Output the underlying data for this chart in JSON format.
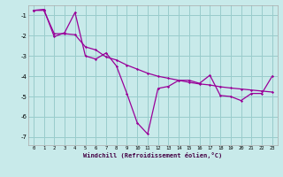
{
  "xlabel": "Windchill (Refroidissement éolien,°C)",
  "bg_color": "#c8eaea",
  "grid_color": "#99cccc",
  "line_color": "#990099",
  "xlim": [
    -0.5,
    23.5
  ],
  "ylim": [
    -7.4,
    -0.5
  ],
  "yticks": [
    -7,
    -6,
    -5,
    -4,
    -3,
    -2,
    -1
  ],
  "xticks": [
    0,
    1,
    2,
    3,
    4,
    5,
    6,
    7,
    8,
    9,
    10,
    11,
    12,
    13,
    14,
    15,
    16,
    17,
    18,
    19,
    20,
    21,
    22,
    23
  ],
  "series1_x": [
    0,
    1,
    2,
    3,
    4,
    5,
    6,
    7,
    8,
    9,
    10,
    11,
    12,
    13,
    14,
    15,
    16,
    17,
    18,
    19,
    20,
    21,
    22,
    23
  ],
  "series1_y": [
    -0.75,
    -0.7,
    -2.05,
    -1.85,
    -0.85,
    -3.0,
    -3.15,
    -2.85,
    -3.5,
    -4.85,
    -6.3,
    -6.85,
    -4.6,
    -4.5,
    -4.2,
    -4.2,
    -4.35,
    -3.95,
    -4.95,
    -5.0,
    -5.2,
    -4.85,
    -4.85,
    -4.0
  ],
  "series2_x": [
    0,
    1,
    2,
    3,
    4,
    5,
    6,
    7,
    8,
    9,
    10,
    11,
    12,
    13,
    14,
    15,
    16,
    17,
    18,
    19,
    20,
    21,
    22,
    23
  ],
  "series2_y": [
    -0.75,
    -0.75,
    -1.9,
    -1.9,
    -1.95,
    -2.55,
    -2.7,
    -3.05,
    -3.2,
    -3.45,
    -3.65,
    -3.85,
    -4.0,
    -4.1,
    -4.2,
    -4.3,
    -4.38,
    -4.43,
    -4.52,
    -4.58,
    -4.63,
    -4.68,
    -4.73,
    -4.78
  ]
}
